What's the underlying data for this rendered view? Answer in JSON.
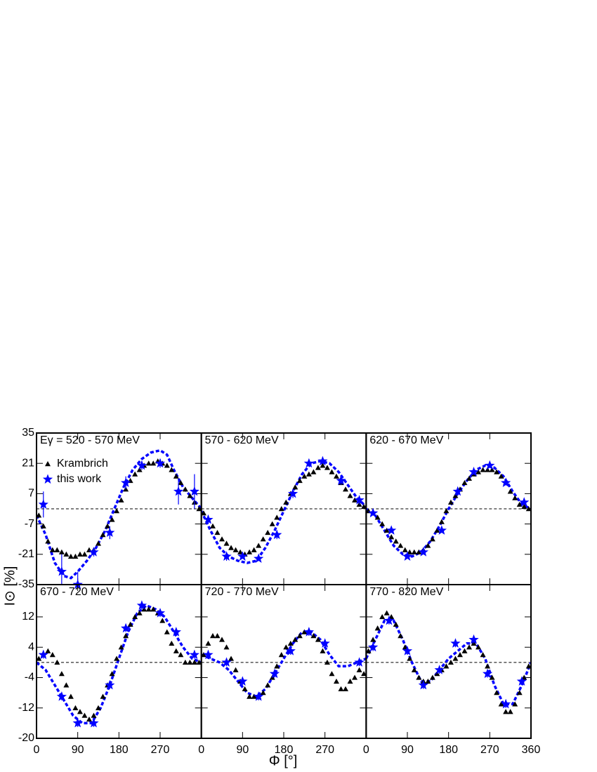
{
  "xlabel": "Φ [°]",
  "ylabel": "I⊙ [%]",
  "chart_data": [
    {
      "type": "scatter",
      "annotation": "Eγ = 520 - 570 MeV",
      "legend": "upper left",
      "hline": 0,
      "xlim": [
        0,
        360
      ],
      "ylim": [
        -35,
        35
      ],
      "xticks": [
        0,
        90,
        180,
        270,
        360
      ],
      "yticks": [
        -35,
        -21,
        -7,
        7,
        21,
        35
      ],
      "series": [
        {
          "name": "Krambrich",
          "color": "#000000",
          "marker": "triangle",
          "x": [
            5,
            15,
            25,
            35,
            45,
            55,
            65,
            75,
            85,
            95,
            105,
            115,
            125,
            135,
            145,
            155,
            165,
            175,
            185,
            195,
            205,
            215,
            225,
            235,
            245,
            255,
            265,
            275,
            285,
            295,
            305,
            315,
            325,
            335,
            345,
            355
          ],
          "values": [
            -3,
            -8,
            -15,
            -19,
            -19,
            -20,
            -21,
            -22,
            -22,
            -21,
            -21,
            -19,
            -19,
            -16,
            -12,
            -8,
            -5,
            -1,
            4,
            9,
            13,
            16,
            18,
            20,
            21,
            21,
            22,
            21,
            20,
            18,
            15,
            12,
            9,
            6,
            3,
            0
          ]
        },
        {
          "name": "this work",
          "color": "#0000ff",
          "marker": "star",
          "x": [
            15,
            55,
            90,
            125,
            160,
            195,
            230,
            270,
            310,
            345
          ],
          "values": [
            2,
            -29,
            -35,
            -20,
            -11,
            12,
            20,
            21,
            8,
            8
          ],
          "errors": [
            6,
            8,
            6,
            2,
            3,
            3,
            2,
            2,
            6,
            8
          ]
        }
      ],
      "fit": {
        "color": "#0000ff",
        "style": "dashed",
        "x": [
          0,
          20,
          40,
          60,
          75,
          90,
          110,
          130,
          150,
          170,
          190,
          210,
          230,
          250,
          270,
          285,
          300,
          320,
          340,
          360
        ],
        "values": [
          -3,
          -12,
          -25,
          -31,
          -32,
          -29,
          -24,
          -18,
          -10,
          0,
          10,
          18,
          23,
          26,
          27,
          25,
          18,
          10,
          5,
          0
        ]
      }
    },
    {
      "type": "scatter",
      "annotation": "570 - 620 MeV",
      "hline": 0,
      "xlim": [
        0,
        360
      ],
      "ylim": [
        -35,
        35
      ],
      "xticks": [
        0,
        90,
        180,
        270,
        360
      ],
      "yticks": [
        -35,
        -21,
        -7,
        7,
        21,
        35
      ],
      "series": [
        {
          "name": "Krambrich",
          "color": "#000000",
          "marker": "triangle",
          "x": [
            5,
            15,
            25,
            35,
            45,
            55,
            65,
            75,
            85,
            95,
            105,
            115,
            125,
            135,
            145,
            155,
            165,
            175,
            185,
            195,
            205,
            215,
            225,
            235,
            245,
            255,
            265,
            275,
            285,
            295,
            305,
            315,
            325,
            335,
            345,
            355
          ],
          "values": [
            -2,
            -5,
            -8,
            -11,
            -14,
            -16,
            -18,
            -19,
            -20,
            -21,
            -20,
            -19,
            -17,
            -14,
            -11,
            -7,
            -4,
            0,
            3,
            7,
            10,
            13,
            15,
            16,
            17,
            19,
            20,
            19,
            17,
            15,
            12,
            9,
            6,
            4,
            2,
            1
          ]
        },
        {
          "name": "this work",
          "color": "#0000ff",
          "marker": "star",
          "x": [
            15,
            55,
            90,
            125,
            165,
            200,
            235,
            265,
            305,
            345
          ],
          "values": [
            -5,
            -22,
            -22,
            -23,
            -12,
            7,
            21,
            22,
            13,
            4
          ],
          "errors": [
            2,
            2,
            1,
            1,
            2,
            2,
            1,
            1,
            2,
            2
          ]
        }
      ],
      "fit": {
        "color": "#0000ff",
        "style": "dashed",
        "x": [
          0,
          20,
          40,
          60,
          80,
          100,
          120,
          140,
          160,
          180,
          200,
          220,
          240,
          260,
          280,
          300,
          320,
          340,
          360
        ],
        "values": [
          -1,
          -10,
          -18,
          -22,
          -24,
          -25,
          -24,
          -18,
          -10,
          -1,
          8,
          16,
          21,
          22,
          21,
          17,
          11,
          5,
          1
        ]
      }
    },
    {
      "type": "scatter",
      "annotation": "620 - 670 MeV",
      "hline": 0,
      "xlim": [
        0,
        360
      ],
      "ylim": [
        -35,
        35
      ],
      "xticks": [
        0,
        90,
        180,
        270,
        360
      ],
      "yticks": [
        -35,
        -21,
        -7,
        7,
        21,
        35
      ],
      "series": [
        {
          "name": "Krambrich",
          "color": "#000000",
          "marker": "triangle",
          "x": [
            5,
            15,
            25,
            35,
            45,
            55,
            65,
            75,
            85,
            95,
            105,
            115,
            125,
            135,
            145,
            155,
            165,
            175,
            185,
            195,
            205,
            215,
            225,
            235,
            245,
            255,
            265,
            275,
            285,
            295,
            305,
            315,
            325,
            335,
            345,
            355
          ],
          "values": [
            -1,
            -2,
            -4,
            -7,
            -10,
            -13,
            -15,
            -17,
            -19,
            -20,
            -20,
            -20,
            -19,
            -17,
            -14,
            -10,
            -6,
            -1,
            3,
            6,
            9,
            12,
            14,
            16,
            17,
            18,
            18,
            18,
            17,
            15,
            12,
            8,
            5,
            2,
            1,
            0
          ]
        },
        {
          "name": "this work",
          "color": "#0000ff",
          "marker": "star",
          "x": [
            15,
            55,
            90,
            125,
            165,
            200,
            235,
            270,
            305,
            345
          ],
          "values": [
            -2,
            -10,
            -22,
            -20,
            -10,
            8,
            17,
            20,
            12,
            3
          ],
          "errors": [
            1,
            1,
            1,
            1,
            1,
            1,
            1,
            1,
            1,
            1
          ]
        }
      ],
      "fit": {
        "color": "#0000ff",
        "style": "dashed",
        "x": [
          0,
          20,
          40,
          60,
          80,
          100,
          120,
          140,
          160,
          180,
          200,
          220,
          240,
          260,
          280,
          300,
          320,
          340,
          360
        ],
        "values": [
          0,
          -3,
          -10,
          -17,
          -21,
          -22,
          -20,
          -15,
          -8,
          0,
          7,
          13,
          18,
          20,
          19,
          15,
          8,
          2,
          0
        ]
      }
    },
    {
      "type": "scatter",
      "annotation": "670 - 720 MeV",
      "hline": 0,
      "xlim": [
        0,
        360
      ],
      "ylim": [
        -20,
        20.5
      ],
      "xticks": [
        0,
        90,
        180,
        270,
        360
      ],
      "yticks": [
        -20,
        -12,
        -4,
        4,
        12
      ],
      "series": [
        {
          "name": "Krambrich",
          "color": "#000000",
          "marker": "triangle",
          "x": [
            5,
            15,
            25,
            35,
            45,
            55,
            65,
            75,
            85,
            95,
            105,
            115,
            125,
            135,
            145,
            155,
            165,
            175,
            185,
            195,
            205,
            215,
            225,
            235,
            245,
            255,
            265,
            275,
            285,
            295,
            305,
            315,
            325,
            335,
            345,
            355
          ],
          "values": [
            1,
            2,
            3,
            2,
            0,
            -3,
            -6,
            -9,
            -12,
            -13,
            -14,
            -15,
            -14,
            -12,
            -9,
            -6,
            -3,
            1,
            4,
            7,
            10,
            12,
            13,
            14,
            14,
            14,
            13,
            11,
            8,
            5,
            3,
            2,
            0,
            0,
            0,
            0
          ]
        },
        {
          "name": "this work",
          "color": "#0000ff",
          "marker": "star",
          "x": [
            15,
            55,
            90,
            125,
            160,
            195,
            230,
            270,
            305,
            345
          ],
          "values": [
            2,
            -9,
            -16,
            -16,
            -6,
            9,
            15,
            13,
            8,
            2
          ],
          "errors": [
            1,
            1,
            1,
            1,
            1,
            1,
            1,
            1,
            1,
            1
          ]
        }
      ],
      "fit": {
        "color": "#0000ff",
        "style": "dashed",
        "x": [
          0,
          20,
          40,
          60,
          80,
          100,
          120,
          140,
          160,
          180,
          200,
          220,
          240,
          260,
          280,
          300,
          320,
          340,
          360
        ],
        "values": [
          0,
          -2,
          -6,
          -10,
          -14,
          -16,
          -16,
          -12,
          -6,
          1,
          8,
          13,
          15,
          14,
          12,
          8,
          4,
          1,
          0
        ]
      }
    },
    {
      "type": "scatter",
      "annotation": "720 - 770 MeV",
      "hline": 0,
      "xlim": [
        0,
        360
      ],
      "ylim": [
        -20,
        20.5
      ],
      "xticks": [
        0,
        90,
        180,
        270,
        360
      ],
      "yticks": [
        -20,
        -12,
        -4,
        4,
        12
      ],
      "series": [
        {
          "name": "Krambrich",
          "color": "#000000",
          "marker": "triangle",
          "x": [
            5,
            15,
            25,
            35,
            45,
            55,
            65,
            75,
            85,
            95,
            105,
            115,
            125,
            135,
            145,
            155,
            165,
            175,
            185,
            195,
            205,
            215,
            225,
            235,
            245,
            255,
            265,
            275,
            285,
            295,
            305,
            315,
            325,
            335,
            345,
            355
          ],
          "values": [
            2,
            5,
            7,
            7,
            6,
            4,
            1,
            -2,
            -5,
            -7,
            -9,
            -9,
            -9,
            -8,
            -6,
            -4,
            -1,
            2,
            4,
            5,
            6,
            7,
            8,
            8,
            7,
            6,
            3,
            0,
            -3,
            -5,
            -7,
            -7,
            -5,
            -4,
            -2,
            -3
          ]
        },
        {
          "name": "this work",
          "color": "#0000ff",
          "marker": "star",
          "x": [
            15,
            55,
            90,
            125,
            160,
            195,
            235,
            270,
            345
          ],
          "values": [
            2,
            0,
            -5,
            -9,
            -3,
            3,
            8,
            5,
            0
          ],
          "errors": [
            1,
            1,
            1,
            1,
            1,
            1,
            1,
            1,
            1
          ]
        }
      ],
      "fit": {
        "color": "#0000ff",
        "style": "dashed",
        "x": [
          0,
          20,
          40,
          60,
          80,
          100,
          120,
          140,
          160,
          180,
          200,
          220,
          240,
          260,
          280,
          300,
          320,
          340,
          360
        ],
        "values": [
          2,
          1,
          0,
          -2,
          -5,
          -8,
          -9,
          -7,
          -3,
          1,
          5,
          8,
          8,
          6,
          2,
          -1,
          -1,
          0,
          1
        ]
      }
    },
    {
      "type": "scatter",
      "annotation": "770 - 820 MeV",
      "hline": 0,
      "xlim": [
        0,
        360
      ],
      "ylim": [
        -20,
        20.5
      ],
      "xticks": [
        0,
        90,
        180,
        270,
        360
      ],
      "yticks": [
        -20,
        -12,
        -4,
        4,
        12
      ],
      "series": [
        {
          "name": "Krambrich",
          "color": "#000000",
          "marker": "triangle",
          "x": [
            5,
            15,
            25,
            35,
            45,
            55,
            65,
            75,
            85,
            95,
            105,
            115,
            125,
            135,
            145,
            155,
            165,
            175,
            185,
            195,
            205,
            215,
            225,
            235,
            245,
            255,
            265,
            275,
            285,
            295,
            305,
            315,
            325,
            335,
            345,
            355
          ],
          "values": [
            3,
            6,
            9,
            12,
            13,
            12,
            10,
            7,
            4,
            1,
            -2,
            -4,
            -5,
            -5,
            -4,
            -3,
            -2,
            -1,
            0,
            1,
            2,
            3,
            4,
            5,
            4,
            2,
            -1,
            -4,
            -8,
            -11,
            -13,
            -13,
            -11,
            -8,
            -4,
            -1
          ]
        },
        {
          "name": "this work",
          "color": "#0000ff",
          "marker": "star",
          "x": [
            15,
            50,
            90,
            125,
            160,
            195,
            235,
            265,
            305,
            340
          ],
          "values": [
            4,
            11,
            3,
            -6,
            -2,
            5,
            6,
            -3,
            -11,
            -5
          ],
          "errors": [
            1,
            1,
            1,
            1,
            1,
            1,
            1,
            1,
            1,
            1
          ]
        }
      ],
      "fit": {
        "color": "#0000ff",
        "style": "dashed",
        "x": [
          0,
          20,
          40,
          60,
          80,
          100,
          120,
          140,
          160,
          180,
          200,
          220,
          240,
          260,
          280,
          300,
          320,
          340,
          360
        ],
        "values": [
          1,
          6,
          11,
          11,
          6,
          0,
          -5,
          -5,
          -2,
          1,
          3,
          5,
          5,
          1,
          -6,
          -11,
          -11,
          -6,
          0
        ]
      }
    }
  ]
}
